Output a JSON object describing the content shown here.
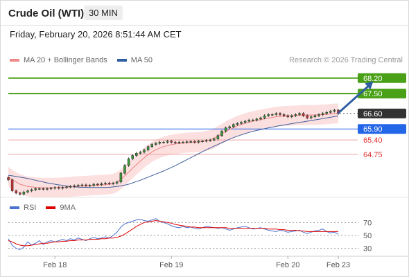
{
  "header": {
    "title": "Crude Oil (WTI)",
    "timeframe": "30 MIN"
  },
  "datetime": "Friday, February 20, 2026 8:51:44 AM CET",
  "legend": {
    "items": [
      {
        "label": "MA 20 + Bollinger Bands",
        "color": "#f08a8a"
      },
      {
        "label": "MA 50",
        "color": "#2f5f9e"
      }
    ],
    "credit": "Research © 2026 Trading Central"
  },
  "rsi_legend": {
    "items": [
      {
        "label": "RSI",
        "color": "#4a72d0"
      },
      {
        "label": "9MA",
        "color": "#dd0000"
      }
    ]
  },
  "colors": {
    "green": "#4aa017",
    "blue": "#2466e8",
    "red": "#e05050",
    "dark": "#333333",
    "ma50": "#3d5f9a",
    "ma20": "#ef8080",
    "band": "#fcdcdc",
    "arrow": "#2f5ea3"
  },
  "chart_data": [
    {
      "type": "line",
      "subtype": "candlestick",
      "title": "Crude Oil (WTI)",
      "timeframe": "30 MIN",
      "x_tick_labels": [
        "Feb 18",
        "Feb 19",
        "Feb 20",
        "Feb 23"
      ],
      "ylim": [
        62.9,
        68.6
      ],
      "grid": false,
      "legend_position": "top-left",
      "series": [
        {
          "name": "Crude Oil (WTI)",
          "role": "close",
          "values": [
            63.6,
            63.1,
            63.0,
            62.95,
            63.05,
            63.1,
            63.15,
            63.2,
            63.2,
            63.18,
            63.2,
            63.22,
            63.25,
            63.22,
            63.25,
            63.28,
            63.3,
            63.33,
            63.35,
            63.37,
            63.33,
            63.35,
            63.4,
            63.38,
            63.42,
            63.45,
            63.42,
            63.45,
            63.5,
            63.9,
            64.25,
            64.55,
            64.7,
            64.8,
            64.85,
            64.95,
            65.1,
            65.2,
            65.25,
            65.3,
            65.3,
            65.35,
            65.3,
            65.28,
            65.3,
            65.3,
            65.32,
            65.33,
            65.3,
            65.35,
            65.35,
            65.38,
            65.4,
            65.45,
            65.6,
            65.8,
            65.95,
            66.0,
            66.1,
            66.15,
            66.2,
            66.25,
            66.3,
            66.3,
            66.35,
            66.4,
            66.5,
            66.55,
            66.55,
            66.6,
            66.55,
            66.5,
            66.45,
            66.5,
            66.55,
            66.6,
            66.5,
            66.4,
            66.45,
            66.5,
            66.55,
            66.6,
            66.65,
            66.7,
            66.75,
            66.6
          ]
        },
        {
          "name": "MA 20",
          "values": [
            63.75,
            63.6,
            63.5,
            63.4,
            63.35,
            63.3,
            63.28,
            63.26,
            63.25,
            63.24,
            63.24,
            63.24,
            63.24,
            63.25,
            63.26,
            63.27,
            63.28,
            63.3,
            63.31,
            63.32,
            63.33,
            63.34,
            63.35,
            63.36,
            63.37,
            63.38,
            63.4,
            63.42,
            63.5,
            63.62,
            63.78,
            63.95,
            64.12,
            64.28,
            64.44,
            64.6,
            64.74,
            64.86,
            64.96,
            65.04,
            65.1,
            65.15,
            65.19,
            65.22,
            65.24,
            65.26,
            65.28,
            65.29,
            65.3,
            65.31,
            65.33,
            65.36,
            65.4,
            65.48,
            65.58,
            65.68,
            65.78,
            65.88,
            65.96,
            66.04,
            66.1,
            66.16,
            66.21,
            66.25,
            66.29,
            66.32,
            66.36,
            66.39,
            66.42,
            66.45,
            66.47,
            66.48,
            66.49,
            66.5,
            66.51,
            66.52,
            66.53,
            66.53,
            66.53,
            66.53,
            66.54,
            66.55,
            66.56,
            66.58,
            66.6,
            66.6
          ]
        },
        {
          "name": "MA 50",
          "values": [
            63.8,
            63.78,
            63.75,
            63.72,
            63.69,
            63.66,
            63.62,
            63.58,
            63.54,
            63.5,
            63.46,
            63.43,
            63.4,
            63.37,
            63.35,
            63.32,
            63.3,
            63.28,
            63.27,
            63.26,
            63.26,
            63.25,
            63.25,
            63.25,
            63.25,
            63.25,
            63.26,
            63.28,
            63.3,
            63.33,
            63.36,
            63.4,
            63.46,
            63.52,
            63.58,
            63.65,
            63.72,
            63.79,
            63.86,
            63.93,
            64.0,
            64.08,
            64.16,
            64.24,
            64.33,
            64.42,
            64.51,
            64.6,
            64.69,
            64.78,
            64.87,
            64.96,
            65.04,
            65.12,
            65.2,
            65.28,
            65.36,
            65.44,
            65.51,
            65.57,
            65.63,
            65.69,
            65.74,
            65.79,
            65.83,
            65.87,
            65.91,
            65.95,
            65.98,
            66.02,
            66.05,
            66.08,
            66.11,
            66.14,
            66.17,
            66.2,
            66.22,
            66.25,
            66.28,
            66.31,
            66.34,
            66.37,
            66.4,
            66.43,
            66.46,
            66.49
          ]
        }
      ],
      "levels": [
        {
          "value": 68.2,
          "label": "68.20",
          "style": "solid",
          "color": "#4aa017",
          "tag_bg": "#4aa017",
          "tag_fg": "#ffffff"
        },
        {
          "value": 67.5,
          "label": "67.50",
          "style": "solid",
          "color": "#4aa017",
          "tag_bg": "#4aa017",
          "tag_fg": "#ffffff"
        },
        {
          "value": 66.6,
          "label": "66.60",
          "style": "dotted",
          "color": "#555555",
          "tag_bg": "#333333",
          "tag_fg": "#ffffff"
        },
        {
          "value": 65.9,
          "label": "65.90",
          "style": "solid",
          "color": "#2466e8",
          "tag_bg": "#2466e8",
          "tag_fg": "#ffffff"
        },
        {
          "value": 65.4,
          "label": "65.40",
          "style": "solid",
          "color": "#f2a0a0",
          "tag_bg": "",
          "tag_fg": "#e03030"
        },
        {
          "value": 64.75,
          "label": "64.75",
          "style": "solid",
          "color": "#f2a0a0",
          "tag_bg": "",
          "tag_fg": "#e03030"
        }
      ],
      "annotations": [
        {
          "type": "arrow",
          "from": {
            "x_index": 85,
            "y": 66.62
          },
          "to": {
            "x_index": 94,
            "y": 68.05
          },
          "color": "#2f5ea3"
        }
      ]
    },
    {
      "type": "line",
      "title": "",
      "ylim": [
        20,
        80
      ],
      "y_ticks": [
        70,
        50,
        30
      ],
      "guide_lines": [
        70,
        50,
        30
      ],
      "grid": false,
      "legend_position": "top-left",
      "series": [
        {
          "name": "RSI",
          "values": [
            45,
            35,
            30,
            28,
            32,
            40,
            35,
            38,
            42,
            36,
            40,
            42,
            40,
            42,
            44,
            42,
            45,
            43,
            46,
            44,
            42,
            45,
            47,
            45,
            46,
            48,
            46,
            50,
            55,
            63,
            68,
            70,
            72,
            74,
            75,
            73,
            72,
            74,
            76,
            72,
            70,
            68,
            65,
            63,
            62,
            64,
            62,
            63,
            61,
            60,
            62,
            64,
            63,
            62,
            61,
            62,
            60,
            58,
            60,
            62,
            63,
            64,
            62,
            60,
            61,
            62,
            60,
            58,
            57,
            56,
            58,
            57,
            55,
            56,
            57,
            58,
            55,
            53,
            55,
            57,
            58,
            60,
            56,
            54,
            55,
            52
          ]
        },
        {
          "name": "9MA",
          "values": [
            42,
            40,
            37,
            35,
            34,
            34,
            35,
            36,
            37,
            38,
            38,
            39,
            40,
            40,
            41,
            41,
            42,
            42,
            43,
            43,
            43,
            44,
            44,
            44,
            45,
            45,
            46,
            46,
            47,
            49,
            52,
            56,
            60,
            64,
            67,
            70,
            71,
            72,
            73,
            72,
            71,
            70,
            69,
            67,
            66,
            65,
            64,
            63,
            63,
            62,
            62,
            62,
            62,
            62,
            62,
            62,
            62,
            61,
            61,
            61,
            61,
            61,
            61,
            61,
            61,
            61,
            61,
            60,
            60,
            60,
            59,
            59,
            58,
            58,
            58,
            57,
            57,
            56,
            56,
            56,
            56,
            56,
            56,
            56,
            56,
            56
          ]
        }
      ]
    }
  ]
}
